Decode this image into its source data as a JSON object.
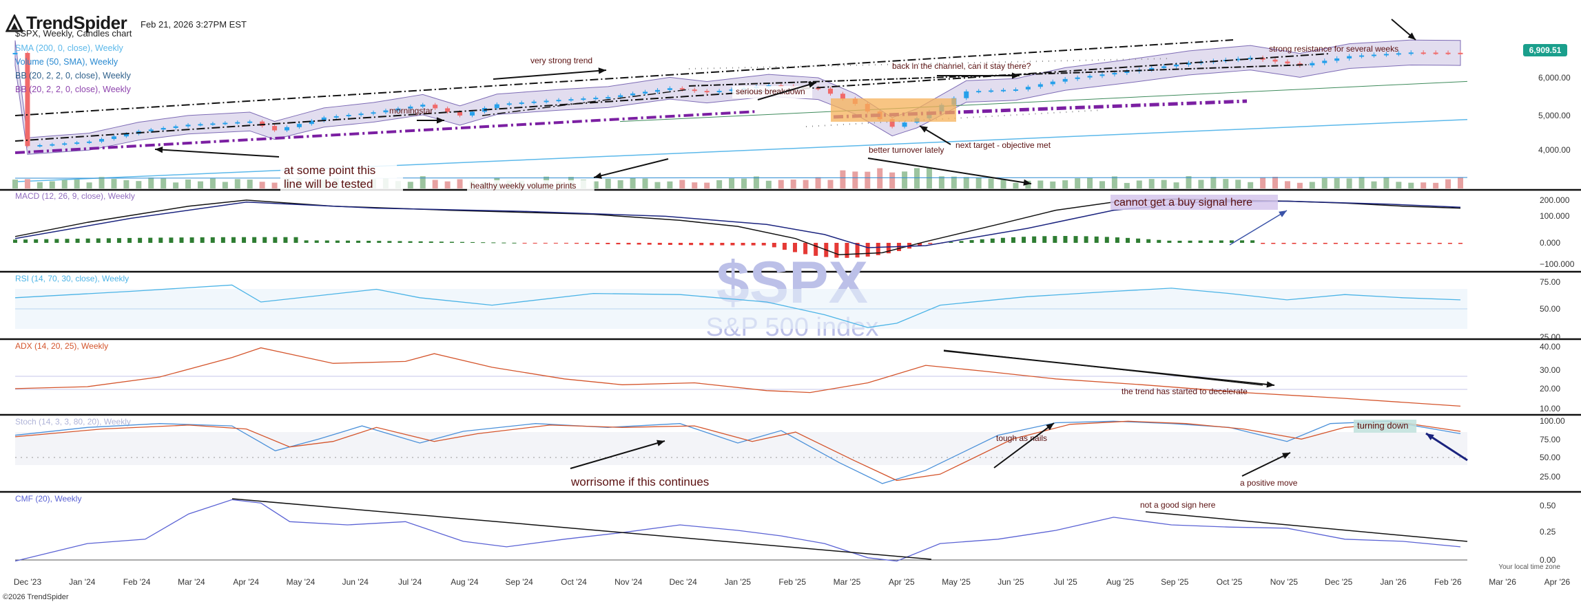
{
  "header": {
    "brand": "TrendSpider",
    "datetime": "Feb 21, 2026 3:27PM EST",
    "title": "$SPX, Weekly, Candles chart"
  },
  "indicators": [
    {
      "label": "SMA (200, 0, close), Weekly",
      "color": "#5bb8ea"
    },
    {
      "label": "Volume (50, SMA), Weekly",
      "color": "#2a8ad1"
    },
    {
      "label": "BB (20, 2, 2, 0, close), Weekly",
      "color": "#2d5f8a"
    },
    {
      "label": "BB (20, 2, 2, 0, close), Weekly",
      "color": "#8e44ad"
    }
  ],
  "watermark": {
    "symbol": "$SPX",
    "name": "S&P 500 index"
  },
  "colors": {
    "up": "#26a0ea",
    "down": "#f06a6a",
    "vol_up": "#9cc49f",
    "vol_down": "#e7a1a1",
    "macd_hist_up": "#2e7d32",
    "macd_hist_down": "#e53935",
    "bb_fill": "#d8d2ea",
    "bb_line": "#7d6bb5",
    "sma": "#5bb8ea",
    "price_badge": "#1a9f8c",
    "rsi": "#4ab3e6",
    "adx": "#d4542b",
    "stoch_k": "#4a90d9",
    "stoch_d": "#d4542b",
    "cmf": "#5a62d4",
    "trend_line": "#111111",
    "purple_dash": "#7b1fa2"
  },
  "price_badge": "6,909.51",
  "copyright": "©2026 TrendSpider",
  "timezone": "Your local time zone",
  "panes": {
    "price": {
      "ticks": [
        "6,000.00",
        "5,000.00",
        "4,000.00"
      ]
    },
    "macd": {
      "label": "MACD (12, 26, 9, close), Weekly",
      "ticks": [
        "200.000",
        "100.000",
        "0.000",
        "−100.000"
      ]
    },
    "rsi": {
      "label": "RSI (14, 70, 30, close), Weekly",
      "ticks": [
        "75.00",
        "50.00",
        "25.00"
      ]
    },
    "adx": {
      "label": "ADX (14, 20, 25), Weekly",
      "ticks": [
        "40.00",
        "30.00",
        "20.00",
        "10.00"
      ]
    },
    "stoch": {
      "label": "Stoch (14, 3, 3, 80, 20), Weekly",
      "ticks": [
        "100.00",
        "75.00",
        "50.00",
        "25.00"
      ]
    },
    "cmf": {
      "label": "CMF (20), Weekly",
      "ticks": [
        "0.50",
        "0.25",
        "0.00"
      ]
    }
  },
  "x_labels": [
    "Dec '23",
    "Jan '24",
    "Feb '24",
    "Mar '24",
    "Apr '24",
    "May '24",
    "Jun '24",
    "Jul '24",
    "Aug '24",
    "Sep '24",
    "Oct '24",
    "Nov '24",
    "Dec '24",
    "Jan '25",
    "Feb '25",
    "Mar '25",
    "Apr '25",
    "May '25",
    "Jun '25",
    "Jul '25",
    "Aug '25",
    "Sep '25",
    "Oct '25",
    "Nov '25",
    "Dec '25",
    "Jan '26",
    "Feb '26",
    "Mar '26",
    "Apr '26"
  ],
  "annotations": [
    {
      "id": "very-strong-trend",
      "text": "very strong trend"
    },
    {
      "id": "morningstar",
      "text": "morningstar"
    },
    {
      "id": "serious-breakdown",
      "text": "serious breakdown"
    },
    {
      "id": "back-in-channel",
      "text": "back in the channel, can it stay there?"
    },
    {
      "id": "strong-resistance",
      "text": "strong resistance for several weeks"
    },
    {
      "id": "next-target",
      "text": "next target - objective met"
    },
    {
      "id": "better-turnover",
      "text": "better turnover lately"
    },
    {
      "id": "at-some-point",
      "text": "at some point this"
    },
    {
      "id": "line-tested",
      "text": "line will be tested"
    },
    {
      "id": "healthy-volume",
      "text": "healthy weekly volume prints"
    },
    {
      "id": "cannot-buy",
      "text": "cannot get a buy signal here"
    },
    {
      "id": "trend-decelerate",
      "text": "the trend has started to decelerate"
    },
    {
      "id": "tough-as-nails",
      "text": "tough as nails"
    },
    {
      "id": "worrisome",
      "text": "worrisome if this continues"
    },
    {
      "id": "positive-move",
      "text": "a positive move"
    },
    {
      "id": "turning-down",
      "text": "turning down"
    },
    {
      "id": "not-good-sign",
      "text": "not a good sign here"
    }
  ],
  "chart_data": [
    {
      "type": "candlestick",
      "title": "$SPX, Weekly, Candles chart",
      "x_range": [
        "Dec '23",
        "Apr '26"
      ],
      "ylim": [
        3600,
        7200
      ],
      "close_path": [
        {
          "x": "2023-12-01",
          "y": 4590
        },
        {
          "x": "2024-01-05",
          "y": 4700
        },
        {
          "x": "2024-02-02",
          "y": 4960
        },
        {
          "x": "2024-03-01",
          "y": 5120
        },
        {
          "x": "2024-04-05",
          "y": 5200
        },
        {
          "x": "2024-04-19",
          "y": 4980
        },
        {
          "x": "2024-05-17",
          "y": 5300
        },
        {
          "x": "2024-06-14",
          "y": 5430
        },
        {
          "x": "2024-07-12",
          "y": 5620
        },
        {
          "x": "2024-08-02",
          "y": 5350
        },
        {
          "x": "2024-08-23",
          "y": 5630
        },
        {
          "x": "2024-09-27",
          "y": 5740
        },
        {
          "x": "2024-10-25",
          "y": 5810
        },
        {
          "x": "2024-11-29",
          "y": 6030
        },
        {
          "x": "2024-12-20",
          "y": 5930
        },
        {
          "x": "2025-01-24",
          "y": 6100
        },
        {
          "x": "2025-02-21",
          "y": 6020
        },
        {
          "x": "2025-03-14",
          "y": 5640
        },
        {
          "x": "2025-04-04",
          "y": 5070
        },
        {
          "x": "2025-04-18",
          "y": 5280
        },
        {
          "x": "2025-05-16",
          "y": 5950
        },
        {
          "x": "2025-06-13",
          "y": 6000
        },
        {
          "x": "2025-07-11",
          "y": 6260
        },
        {
          "x": "2025-08-15",
          "y": 6450
        },
        {
          "x": "2025-09-19",
          "y": 6660
        },
        {
          "x": "2025-10-24",
          "y": 6790
        },
        {
          "x": "2025-11-21",
          "y": 6600
        },
        {
          "x": "2025-12-19",
          "y": 6830
        },
        {
          "x": "2026-01-23",
          "y": 6920
        },
        {
          "x": "2026-02-20",
          "y": 6909.51
        }
      ],
      "last_price": 6909.51
    },
    {
      "type": "bar",
      "title": "Volume (50, SMA), Weekly",
      "note": "weekly volume bars, colored by candle direction"
    },
    {
      "type": "line",
      "title": "MACD (12, 26, 9, close), Weekly",
      "ylim": [
        -120,
        220
      ],
      "series": [
        {
          "name": "MACD",
          "points": [
            [
              0,
              20
            ],
            [
              0.05,
              90
            ],
            [
              0.12,
              170
            ],
            [
              0.16,
              200
            ],
            [
              0.22,
              170
            ],
            [
              0.3,
              150
            ],
            [
              0.4,
              130
            ],
            [
              0.46,
              100
            ],
            [
              0.5,
              70
            ],
            [
              0.54,
              10
            ],
            [
              0.57,
              -70
            ],
            [
              0.6,
              -60
            ],
            [
              0.63,
              -5
            ],
            [
              0.68,
              80
            ],
            [
              0.72,
              150
            ],
            [
              0.76,
              190
            ],
            [
              0.8,
              205
            ],
            [
              0.84,
              200
            ],
            [
              0.88,
              195
            ],
            [
              0.92,
              185
            ],
            [
              0.96,
              170
            ],
            [
              1.0,
              160
            ]
          ]
        },
        {
          "name": "Signal",
          "points": [
            [
              0,
              10
            ],
            [
              0.08,
              110
            ],
            [
              0.16,
              190
            ],
            [
              0.25,
              160
            ],
            [
              0.35,
              145
            ],
            [
              0.45,
              120
            ],
            [
              0.52,
              80
            ],
            [
              0.56,
              30
            ],
            [
              0.59,
              -35
            ],
            [
              0.63,
              -25
            ],
            [
              0.7,
              60
            ],
            [
              0.76,
              150
            ],
            [
              0.82,
              190
            ],
            [
              0.88,
              195
            ],
            [
              0.95,
              180
            ],
            [
              1.0,
              165
            ]
          ]
        }
      ]
    },
    {
      "type": "line",
      "title": "RSI (14, 70, 30, close), Weekly",
      "ylim": [
        25,
        80
      ],
      "series": [
        {
          "name": "RSI",
          "points": [
            [
              0,
              62
            ],
            [
              0.08,
              68
            ],
            [
              0.15,
              74
            ],
            [
              0.17,
              58
            ],
            [
              0.25,
              70
            ],
            [
              0.28,
              62
            ],
            [
              0.33,
              55
            ],
            [
              0.4,
              66
            ],
            [
              0.46,
              65
            ],
            [
              0.52,
              58
            ],
            [
              0.56,
              46
            ],
            [
              0.59,
              34
            ],
            [
              0.61,
              38
            ],
            [
              0.64,
              55
            ],
            [
              0.7,
              63
            ],
            [
              0.76,
              68
            ],
            [
              0.8,
              71
            ],
            [
              0.84,
              66
            ],
            [
              0.88,
              60
            ],
            [
              0.92,
              65
            ],
            [
              0.96,
              62
            ],
            [
              1.0,
              60
            ]
          ]
        }
      ]
    },
    {
      "type": "line",
      "title": "ADX (14, 20, 25), Weekly",
      "ylim": [
        8,
        42
      ],
      "series": [
        {
          "name": "ADX",
          "points": [
            [
              0,
              19
            ],
            [
              0.05,
              20
            ],
            [
              0.1,
              25
            ],
            [
              0.15,
              35
            ],
            [
              0.17,
              40
            ],
            [
              0.22,
              32
            ],
            [
              0.27,
              33
            ],
            [
              0.29,
              37
            ],
            [
              0.33,
              30
            ],
            [
              0.38,
              24
            ],
            [
              0.42,
              21
            ],
            [
              0.47,
              22
            ],
            [
              0.52,
              18
            ],
            [
              0.55,
              17
            ],
            [
              0.59,
              22
            ],
            [
              0.63,
              31
            ],
            [
              0.67,
              28
            ],
            [
              0.72,
              24
            ],
            [
              0.78,
              21
            ],
            [
              0.85,
              17
            ],
            [
              0.92,
              14
            ],
            [
              1.0,
              10
            ]
          ]
        }
      ]
    },
    {
      "type": "line",
      "title": "Stoch (14, 3, 3, 80, 20), Weekly",
      "ylim": [
        10,
        100
      ],
      "series": [
        {
          "name": "%K",
          "points": [
            [
              0,
              80
            ],
            [
              0.05,
              90
            ],
            [
              0.1,
              95
            ],
            [
              0.15,
              92
            ],
            [
              0.18,
              60
            ],
            [
              0.21,
              75
            ],
            [
              0.24,
              92
            ],
            [
              0.28,
              70
            ],
            [
              0.31,
              85
            ],
            [
              0.36,
              95
            ],
            [
              0.41,
              90
            ],
            [
              0.46,
              95
            ],
            [
              0.5,
              70
            ],
            [
              0.53,
              86
            ],
            [
              0.57,
              45
            ],
            [
              0.6,
              18
            ],
            [
              0.63,
              35
            ],
            [
              0.68,
              80
            ],
            [
              0.72,
              96
            ],
            [
              0.76,
              98
            ],
            [
              0.8,
              95
            ],
            [
              0.84,
              90
            ],
            [
              0.88,
              72
            ],
            [
              0.91,
              95
            ],
            [
              0.95,
              98
            ],
            [
              1.0,
              82
            ]
          ]
        },
        {
          "name": "%D",
          "points": [
            [
              0,
              78
            ],
            [
              0.06,
              88
            ],
            [
              0.12,
              93
            ],
            [
              0.16,
              88
            ],
            [
              0.19,
              65
            ],
            [
              0.22,
              72
            ],
            [
              0.25,
              90
            ],
            [
              0.29,
              72
            ],
            [
              0.32,
              82
            ],
            [
              0.37,
              93
            ],
            [
              0.42,
              90
            ],
            [
              0.47,
              92
            ],
            [
              0.51,
              72
            ],
            [
              0.54,
              84
            ],
            [
              0.58,
              48
            ],
            [
              0.61,
              22
            ],
            [
              0.64,
              30
            ],
            [
              0.69,
              75
            ],
            [
              0.73,
              94
            ],
            [
              0.77,
              98
            ],
            [
              0.81,
              95
            ],
            [
              0.85,
              88
            ],
            [
              0.89,
              75
            ],
            [
              0.92,
              90
            ],
            [
              0.96,
              96
            ],
            [
              1.0,
              85
            ]
          ]
        }
      ]
    },
    {
      "type": "line",
      "title": "CMF (20), Weekly",
      "ylim": [
        -0.02,
        0.62
      ],
      "series": [
        {
          "name": "CMF",
          "points": [
            [
              0,
              0.02
            ],
            [
              0.05,
              0.18
            ],
            [
              0.09,
              0.22
            ],
            [
              0.12,
              0.45
            ],
            [
              0.15,
              0.58
            ],
            [
              0.17,
              0.55
            ],
            [
              0.19,
              0.38
            ],
            [
              0.23,
              0.35
            ],
            [
              0.27,
              0.38
            ],
            [
              0.31,
              0.2
            ],
            [
              0.34,
              0.15
            ],
            [
              0.38,
              0.22
            ],
            [
              0.42,
              0.28
            ],
            [
              0.46,
              0.35
            ],
            [
              0.5,
              0.3
            ],
            [
              0.53,
              0.25
            ],
            [
              0.56,
              0.18
            ],
            [
              0.59,
              0.05
            ],
            [
              0.61,
              0.02
            ],
            [
              0.64,
              0.18
            ],
            [
              0.68,
              0.22
            ],
            [
              0.72,
              0.3
            ],
            [
              0.76,
              0.42
            ],
            [
              0.8,
              0.35
            ],
            [
              0.84,
              0.33
            ],
            [
              0.88,
              0.32
            ],
            [
              0.92,
              0.22
            ],
            [
              0.96,
              0.2
            ],
            [
              1.0,
              0.15
            ]
          ]
        }
      ]
    }
  ]
}
